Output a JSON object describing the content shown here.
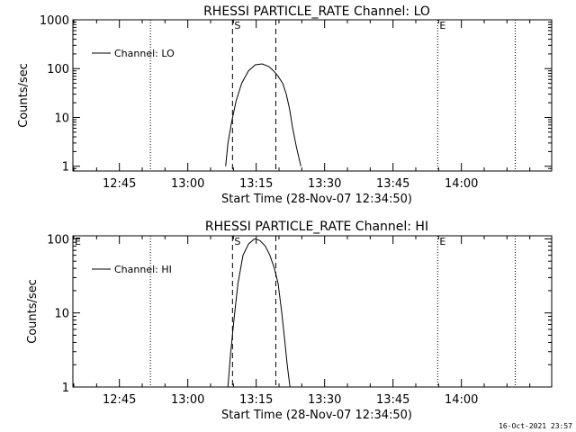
{
  "footer": {
    "timestamp": "16-Oct-2021 23:57"
  },
  "chart_data": [
    {
      "type": "line",
      "title": "RHESSI PARTICLE_RATE Channel: LO",
      "xlabel": "Start Time (28-Nov-07 12:34:50)",
      "ylabel": "Counts/sec",
      "yscale": "log",
      "ylim": [
        0.8,
        1000
      ],
      "yticks": [
        1,
        10,
        100,
        1000
      ],
      "ytick_labels": [
        "1",
        "10",
        "100",
        "1000"
      ],
      "xlim_min": [
        0,
        105
      ],
      "xticks_min": [
        10.2,
        25.2,
        40.2,
        55.2,
        70.2,
        85.2
      ],
      "xtick_labels": [
        "12:45",
        "13:00",
        "13:15",
        "13:30",
        "13:45",
        "14:00"
      ],
      "legend": {
        "label": "Channel: LO",
        "placement": "top-left"
      },
      "series": [
        {
          "name": "Channel: LO",
          "x_min": [
            33.5,
            34.0,
            34.8,
            35.8,
            37.0,
            38.5,
            40.0,
            41.5,
            43.0,
            44.0,
            45.0,
            46.0,
            46.8,
            47.5,
            48.2,
            49.0,
            50.0
          ],
          "values": [
            1.0,
            3.0,
            8.0,
            22.0,
            50.0,
            90.0,
            120.0,
            125.0,
            110.0,
            90.0,
            70.0,
            50.0,
            30.0,
            15.0,
            6.0,
            2.5,
            1.0
          ]
        }
      ],
      "markers": [
        {
          "label": "",
          "x_min": 17.0,
          "style": "dotted"
        },
        {
          "label": "S",
          "x_min": 35.0,
          "style": "dashed"
        },
        {
          "label": "",
          "x_min": 44.5,
          "style": "dashed"
        },
        {
          "label": "E",
          "x_min": 80.0,
          "style": "dotted"
        },
        {
          "label": "",
          "x_min": 97.0,
          "style": "dotted"
        }
      ]
    },
    {
      "type": "line",
      "title": "RHESSI PARTICLE_RATE Channel: HI",
      "xlabel": "Start Time (28-Nov-07 12:34:50)",
      "ylabel": "Counts/sec",
      "yscale": "log",
      "ylim": [
        1,
        110
      ],
      "yticks": [
        1,
        10,
        100
      ],
      "ytick_labels": [
        "1",
        "10",
        "100"
      ],
      "xlim_min": [
        0,
        105
      ],
      "xticks_min": [
        10.2,
        25.2,
        40.2,
        55.2,
        70.2,
        85.2
      ],
      "xtick_labels": [
        "12:45",
        "13:00",
        "13:15",
        "13:30",
        "13:45",
        "14:00"
      ],
      "legend": {
        "label": "Channel: HI",
        "placement": "top-left"
      },
      "series": [
        {
          "name": "Channel: HI",
          "x_min": [
            34.0,
            34.5,
            35.3,
            36.2,
            37.3,
            38.5,
            39.8,
            41.0,
            42.2,
            43.2,
            44.2,
            45.0,
            45.8,
            46.5,
            47.0,
            47.6
          ],
          "values": [
            1.0,
            2.5,
            8.0,
            25.0,
            60.0,
            85.0,
            100.0,
            95.0,
            80.0,
            60.0,
            40.0,
            25.0,
            10.0,
            4.0,
            2.0,
            1.0
          ]
        }
      ],
      "markers": [
        {
          "label": "E",
          "x_min": 0.0,
          "style": "none"
        },
        {
          "label": "",
          "x_min": 17.0,
          "style": "dotted"
        },
        {
          "label": "S",
          "x_min": 35.0,
          "style": "dashed"
        },
        {
          "label": "",
          "x_min": 44.5,
          "style": "dashed"
        },
        {
          "label": "E",
          "x_min": 80.0,
          "style": "dotted"
        },
        {
          "label": "",
          "x_min": 97.0,
          "style": "dotted"
        }
      ]
    }
  ]
}
